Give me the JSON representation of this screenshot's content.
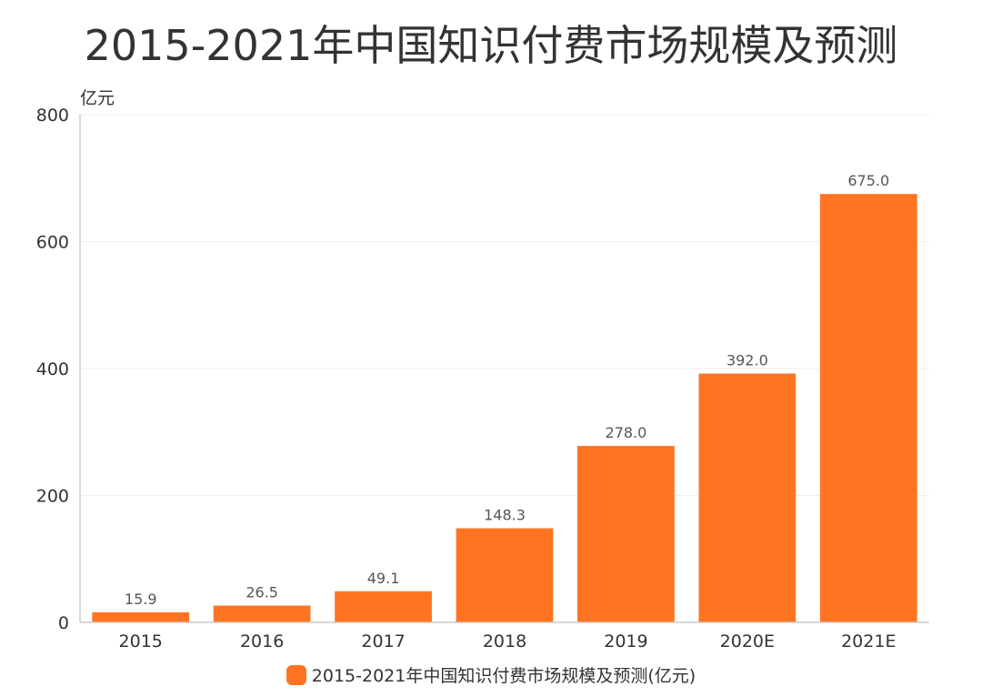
{
  "chart_data": {
    "type": "bar",
    "title": "2015-2021年中国知识付费市场规模及预测",
    "y_unit": "亿元",
    "categories": [
      "2015",
      "2016",
      "2017",
      "2018",
      "2019",
      "2020E",
      "2021E"
    ],
    "series": [
      {
        "name": "2015-2021年中国知识付费市场规模及预测(亿元)",
        "values": [
          15.9,
          26.5,
          49.1,
          148.3,
          278.0,
          392.0,
          675.0
        ],
        "labels": [
          "15.9",
          "26.5",
          "49.1",
          "148.3",
          "278.0",
          "392.0",
          "675.0"
        ]
      }
    ],
    "ylim": [
      0,
      800
    ],
    "yticks": [
      0,
      200,
      400,
      600,
      800
    ],
    "grid": true,
    "legend_position": "bottom",
    "bar_color": "#FF7421"
  }
}
